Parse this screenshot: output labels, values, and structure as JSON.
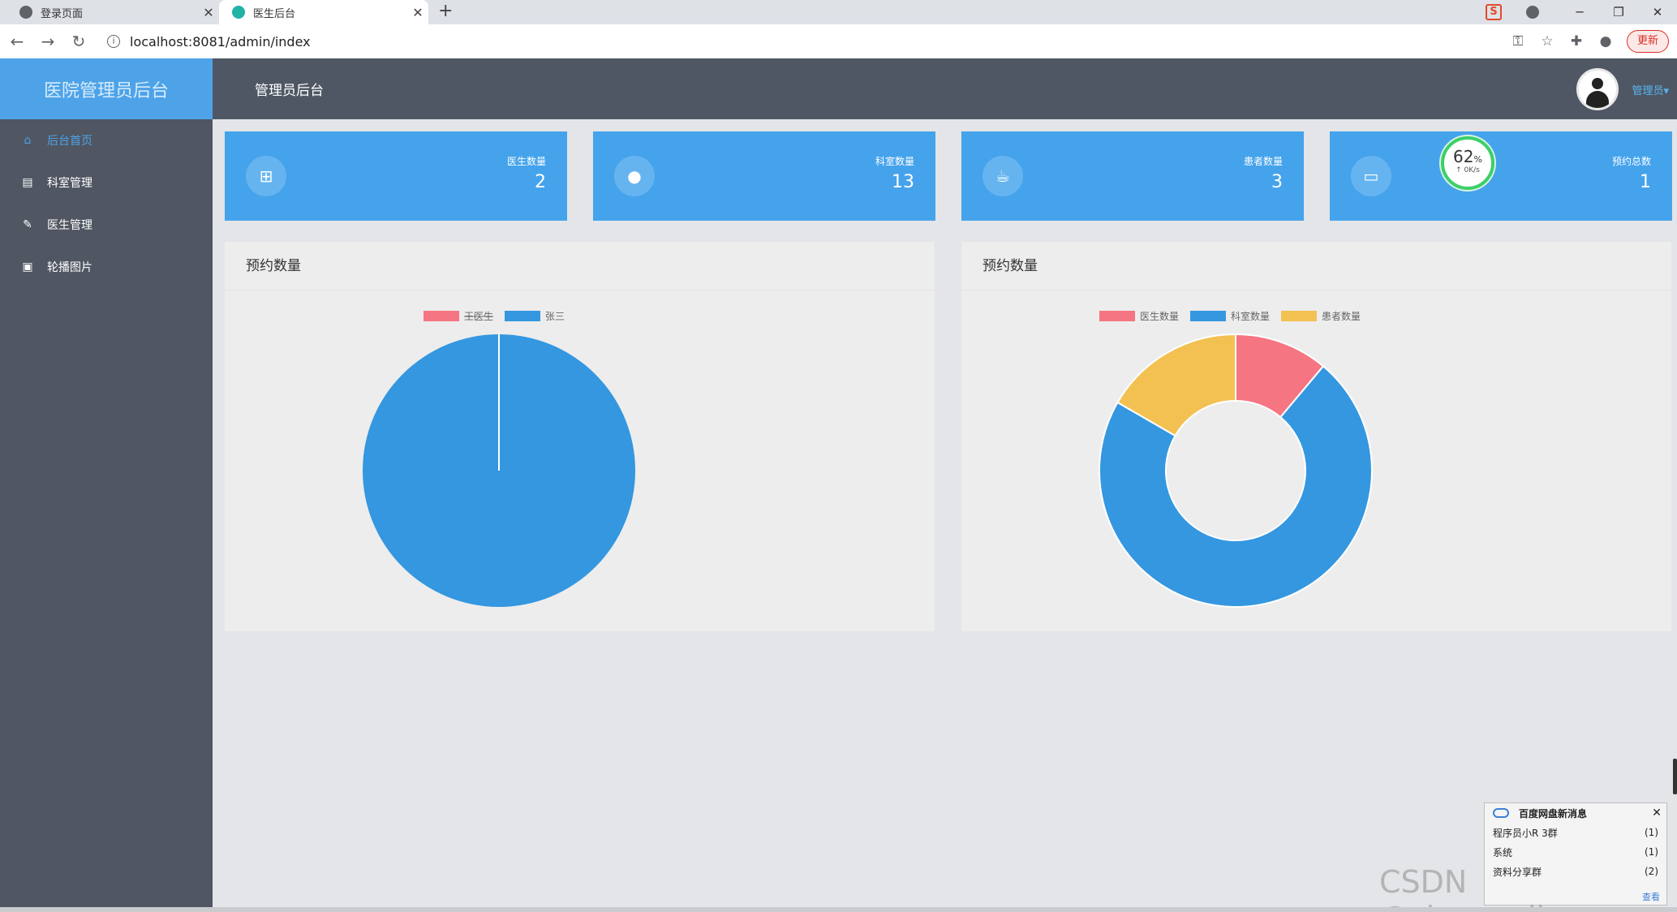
{
  "browser": {
    "tabs": [
      {
        "title": "登录页面",
        "active": false
      },
      {
        "title": "医生后台",
        "active": true
      }
    ],
    "url": "localhost:8081/admin/index",
    "update_label": "更新"
  },
  "app": {
    "brand": "医院管理员后台",
    "header_title": "管理员后台",
    "user_name": "管理员▾"
  },
  "sidebar": {
    "items": [
      {
        "label": "后台首页",
        "icon": "home-icon",
        "active": true
      },
      {
        "label": "科室管理",
        "icon": "comment-icon",
        "active": false
      },
      {
        "label": "医生管理",
        "icon": "pencil-icon",
        "active": false
      },
      {
        "label": "轮播图片",
        "icon": "image-icon",
        "active": false
      }
    ]
  },
  "stats": [
    {
      "label": "医生数量",
      "value": "2",
      "icon": "plus-square-icon"
    },
    {
      "label": "科室数量",
      "value": "13",
      "icon": "user-icon"
    },
    {
      "label": "患者数量",
      "value": "3",
      "icon": "cup-icon"
    },
    {
      "label": "预约总数",
      "value": "1",
      "icon": "monitor-icon"
    }
  ],
  "speed_badge": {
    "percent": "62",
    "unit": "%",
    "rate": "↑ 0K/s"
  },
  "panels": [
    {
      "title": "预约数量"
    },
    {
      "title": "预约数量"
    }
  ],
  "chart_data": [
    {
      "type": "pie",
      "legend_position": "top",
      "series": [
        {
          "name": "王医生",
          "value": 0,
          "color": "#f57582",
          "hidden": true
        },
        {
          "name": "张三",
          "value": 1,
          "color": "#3497e0"
        }
      ]
    },
    {
      "type": "pie",
      "variant": "donut",
      "legend_position": "top",
      "series": [
        {
          "name": "医生数量",
          "value": 2,
          "color": "#f57582"
        },
        {
          "name": "科室数量",
          "value": 13,
          "color": "#3497e0"
        },
        {
          "name": "患者数量",
          "value": 3,
          "color": "#f3c152"
        }
      ]
    }
  ],
  "popup": {
    "title": "百度网盘新消息",
    "rows": [
      {
        "name": "程序员小R 3群",
        "count": "(1)"
      },
      {
        "name": "系统",
        "count": "(1)"
      },
      {
        "name": "资料分享群",
        "count": "(2)"
      }
    ],
    "more": "查看"
  },
  "watermark": "CSDN @shaoweijava"
}
